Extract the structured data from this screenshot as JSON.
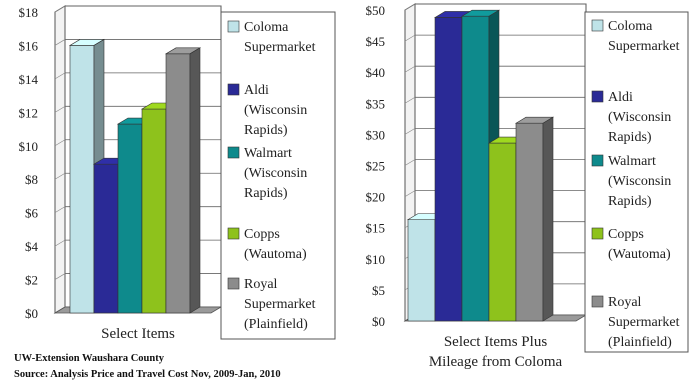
{
  "source_lines": [
    "UW-Extension Waushara County",
    "Source: Analysis Price and Travel Cost  Nov, 2009-Jan, 2010"
  ],
  "chart_data": [
    {
      "type": "bar",
      "xlabel_lines": [
        "Select Items"
      ],
      "ylim": [
        0,
        18
      ],
      "ytick_step": 2,
      "ytick_prefix": "$",
      "grid": true,
      "legend_position": "right",
      "series": [
        {
          "name_lines": [
            "Coloma",
            "Supermarket"
          ],
          "value": 16.0,
          "color": "#bfe3e8"
        },
        {
          "name_lines": [
            "Aldi",
            "(Wisconsin",
            "Rapids)"
          ],
          "value": 8.9,
          "color": "#2a2a96"
        },
        {
          "name_lines": [
            "Walmart",
            "(Wisconsin",
            "Rapids)"
          ],
          "value": 11.3,
          "color": "#0e8a8c"
        },
        {
          "name_lines": [
            "Copps",
            "(Wautoma)"
          ],
          "value": 12.2,
          "color": "#8ec21c"
        },
        {
          "name_lines": [
            "Royal",
            "Supermarket",
            "(Plainfield)"
          ],
          "value": 15.5,
          "color": "#8c8c8c"
        }
      ]
    },
    {
      "type": "bar",
      "xlabel_lines": [
        "Select Items Plus",
        "Mileage from Coloma"
      ],
      "ylim": [
        0,
        50
      ],
      "ytick_step": 5,
      "ytick_prefix": "$",
      "grid": true,
      "legend_position": "right",
      "series": [
        {
          "name_lines": [
            "Coloma",
            "Supermarket"
          ],
          "value": 16.3,
          "color": "#bfe3e8"
        },
        {
          "name_lines": [
            "Aldi",
            "(Wisconsin",
            "Rapids)"
          ],
          "value": 48.8,
          "color": "#2a2a96"
        },
        {
          "name_lines": [
            "Walmart",
            "(Wisconsin",
            "Rapids)"
          ],
          "value": 49.0,
          "color": "#0e8a8c"
        },
        {
          "name_lines": [
            "Copps",
            "(Wautoma)"
          ],
          "value": 28.6,
          "color": "#8ec21c"
        },
        {
          "name_lines": [
            "Royal",
            "Supermarket",
            "(Plainfield)"
          ],
          "value": 31.8,
          "color": "#8c8c8c"
        }
      ]
    }
  ]
}
